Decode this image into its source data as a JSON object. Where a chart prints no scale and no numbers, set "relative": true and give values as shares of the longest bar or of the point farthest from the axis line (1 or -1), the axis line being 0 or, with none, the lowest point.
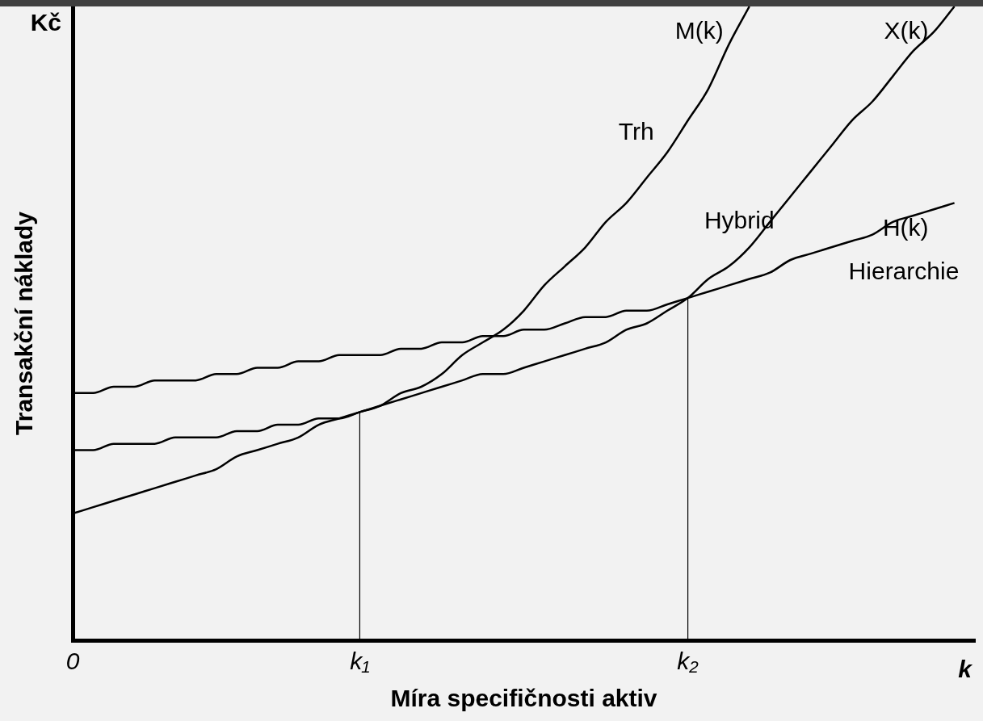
{
  "chart_data": {
    "type": "line",
    "relative": true,
    "xlabel": "Míra specifičnosti aktiv",
    "ylabel": "Transakční náklady",
    "categories": [
      "0",
      null,
      null,
      null,
      null,
      null,
      null,
      null,
      null,
      null,
      null,
      null,
      null,
      null,
      "k₁",
      null,
      null,
      null,
      null,
      null,
      null,
      null,
      null,
      null,
      null,
      null,
      null,
      null,
      null,
      null,
      "k₂",
      null,
      null,
      null,
      null,
      null,
      null,
      null,
      null,
      null,
      null,
      null,
      null,
      null,
      null
    ],
    "series": [
      {
        "name": "M(k)",
        "color": "#000000",
        "values": [
          0.2,
          0.21,
          0.22,
          0.23,
          0.24,
          0.25,
          0.26,
          0.27,
          0.29,
          0.3,
          0.31,
          0.32,
          0.34,
          0.35,
          0.36,
          0.37,
          0.39,
          0.4,
          0.42,
          0.45,
          0.47,
          0.49,
          0.52,
          0.56,
          0.59,
          0.62,
          0.66,
          0.69,
          0.73,
          0.77,
          0.82,
          0.87,
          0.94,
          1.0,
          null,
          null,
          null,
          null,
          null,
          null,
          null,
          null,
          null,
          null,
          null
        ]
      },
      {
        "name": "X(k)",
        "color": "#000000",
        "values": [
          0.3,
          0.3,
          0.31,
          0.31,
          0.31,
          0.32,
          0.32,
          0.32,
          0.33,
          0.33,
          0.34,
          0.34,
          0.35,
          0.35,
          0.36,
          0.37,
          0.38,
          0.39,
          0.4,
          0.41,
          0.42,
          0.42,
          0.43,
          0.44,
          0.45,
          0.46,
          0.47,
          0.49,
          0.5,
          0.52,
          0.54,
          0.57,
          0.59,
          0.62,
          0.66,
          0.7,
          0.74,
          0.78,
          0.82,
          0.85,
          0.89,
          0.93,
          0.96,
          1.0,
          null
        ]
      },
      {
        "name": "H(k)",
        "color": "#000000",
        "values": [
          0.39,
          0.39,
          0.4,
          0.4,
          0.41,
          0.41,
          0.41,
          0.42,
          0.42,
          0.43,
          0.43,
          0.44,
          0.44,
          0.45,
          0.45,
          0.45,
          0.46,
          0.46,
          0.47,
          0.47,
          0.48,
          0.48,
          0.49,
          0.49,
          0.5,
          0.51,
          0.51,
          0.52,
          0.52,
          0.53,
          0.54,
          0.55,
          0.56,
          0.57,
          0.58,
          0.6,
          0.61,
          0.62,
          0.63,
          0.64,
          0.66,
          0.67,
          0.68,
          0.69,
          null
        ]
      }
    ],
    "ref_lines": [
      {
        "axis": "x",
        "value": "k₁",
        "color": "#000000"
      },
      {
        "axis": "x",
        "value": "k₂",
        "color": "#000000"
      }
    ],
    "annotations": [
      "Kč",
      "k",
      "Trh",
      "Hybrid",
      "Hierarchie"
    ],
    "grid": false,
    "legend": false,
    "marker": "none",
    "line_style": "solid"
  }
}
